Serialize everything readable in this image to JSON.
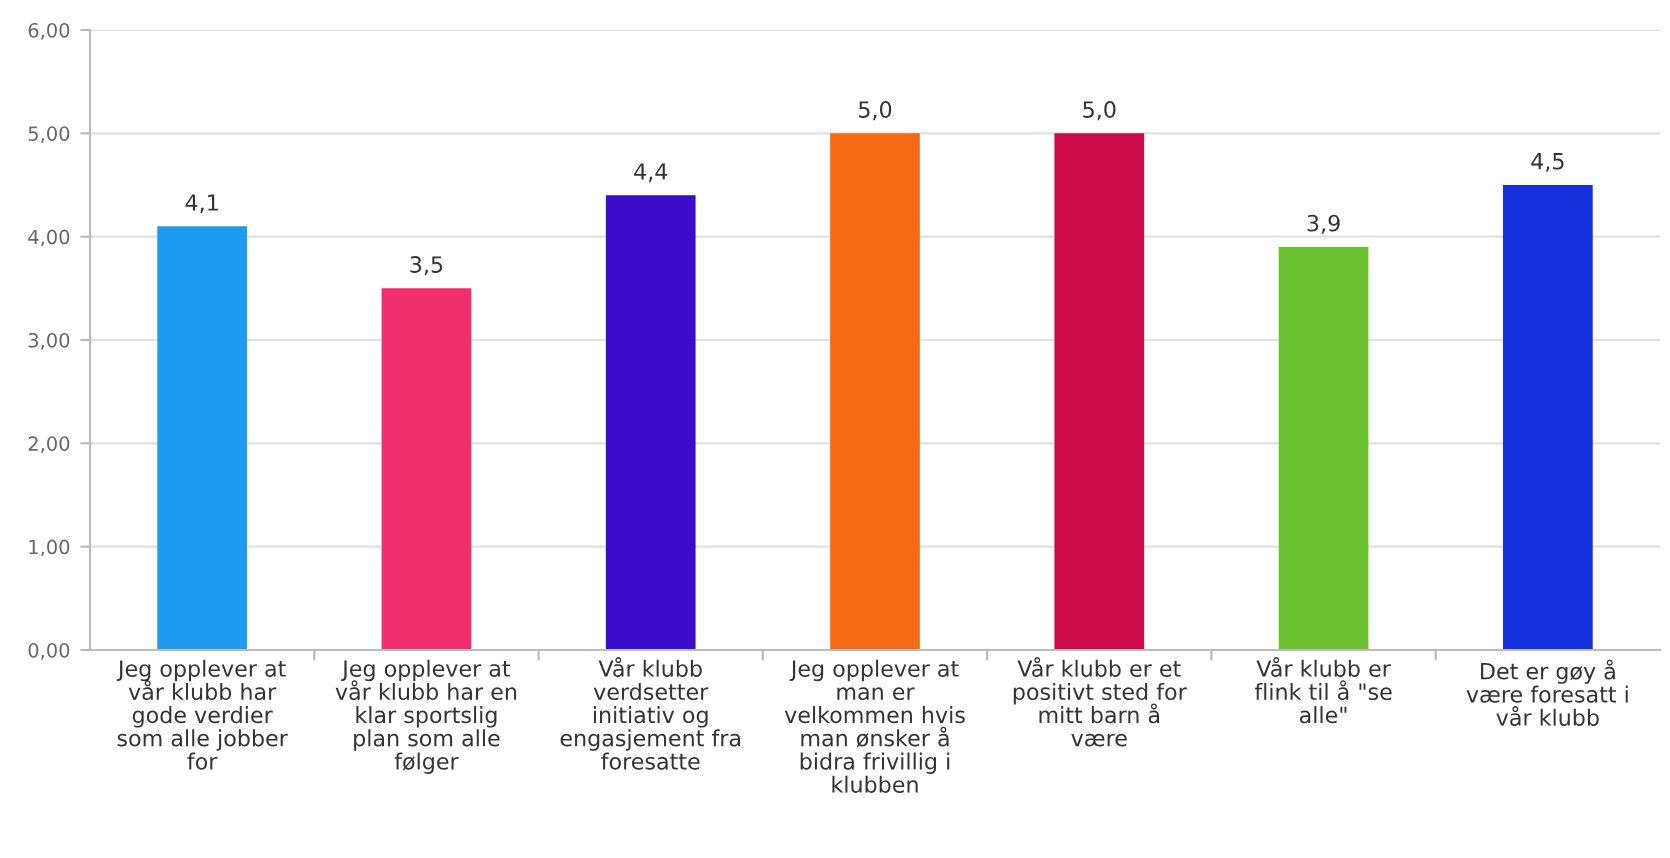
{
  "chart_data": {
    "type": "bar",
    "categories": [
      "Jeg opplever at\nvår klubb har\ngode verdier\nsom alle jobber\nfor",
      "Jeg opplever at\nvår klubb har en\nklar sportslig\nplan som alle\nfølger",
      "Vår klubb\nverdsetter\ninitiativ og\nengasjement fra\nforesatte",
      "Jeg opplever at\nman er\nvelkommen hvis\nman ønsker å\nbidra frivillig i\nklubben",
      "Vår klubb er et\npositivt sted for\nmitt barn å\nvære",
      "Vår klubb er\nflink til å \"se\nalle\"",
      "Det er gøy å\nvære foresatt i\nvår klubb"
    ],
    "values": [
      4.1,
      3.5,
      4.4,
      5.0,
      5.0,
      3.9,
      4.5
    ],
    "value_labels": [
      "4,1",
      "3,5",
      "4,4",
      "5,0",
      "5,0",
      "3,9",
      "4,5"
    ],
    "colors": [
      "#1e9bf0",
      "#f0306e",
      "#3c0ccc",
      "#f56a12",
      "#cc0a48",
      "#6cc22e",
      "#1430dc"
    ],
    "ylim": [
      0,
      6
    ],
    "yticks": [
      {
        "value": 0,
        "label": "0,00"
      },
      {
        "value": 1,
        "label": "1,00"
      },
      {
        "value": 2,
        "label": "2,00"
      },
      {
        "value": 3,
        "label": "3,00"
      },
      {
        "value": 4,
        "label": "4,00"
      },
      {
        "value": 5,
        "label": "5,00"
      },
      {
        "value": 6,
        "label": "6,00"
      }
    ],
    "grid": "y"
  }
}
